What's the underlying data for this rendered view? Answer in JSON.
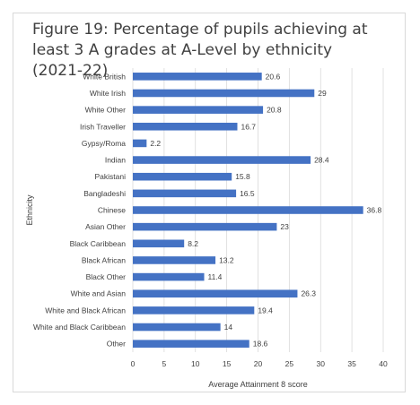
{
  "chart_data": {
    "type": "bar",
    "orientation": "horizontal",
    "title": "Figure 19: Percentage of pupils achieving at least 3 A grades at A-Level by ethnicity (2021-22)",
    "xlabel": "Average Attainment 8 score",
    "ylabel": "Ethnicity",
    "xlim": [
      0,
      40
    ],
    "xticks": [
      "0",
      "5",
      "10",
      "15",
      "20",
      "25",
      "30",
      "35",
      "40"
    ],
    "categories": [
      "White British",
      "White Irish",
      "White Other",
      "Irish Traveller",
      "Gypsy/Roma",
      "Indian",
      "Pakistani",
      "Bangladeshi",
      "Chinese",
      "Asian Other",
      "Black Caribbean",
      "Black African",
      "Black Other",
      "White and Asian",
      "White and Black African",
      "White and Black Caribbean",
      "Other"
    ],
    "values": [
      20.6,
      29,
      20.8,
      16.7,
      2.2,
      28.4,
      15.8,
      16.5,
      36.8,
      23,
      8.2,
      13.2,
      11.4,
      26.3,
      19.4,
      14,
      18.6
    ],
    "value_labels": [
      "20.6",
      "29",
      "20.8",
      "16.7",
      "2.2",
      "28.4",
      "15.8",
      "16.5",
      "36.8",
      "23",
      "8.2",
      "13.2",
      "11.4",
      "26.3",
      "19.4",
      "14",
      "18.6"
    ],
    "bar_color": "#4472c4",
    "grid": true,
    "grid_color": "#d9d9d9",
    "legend": "none"
  }
}
